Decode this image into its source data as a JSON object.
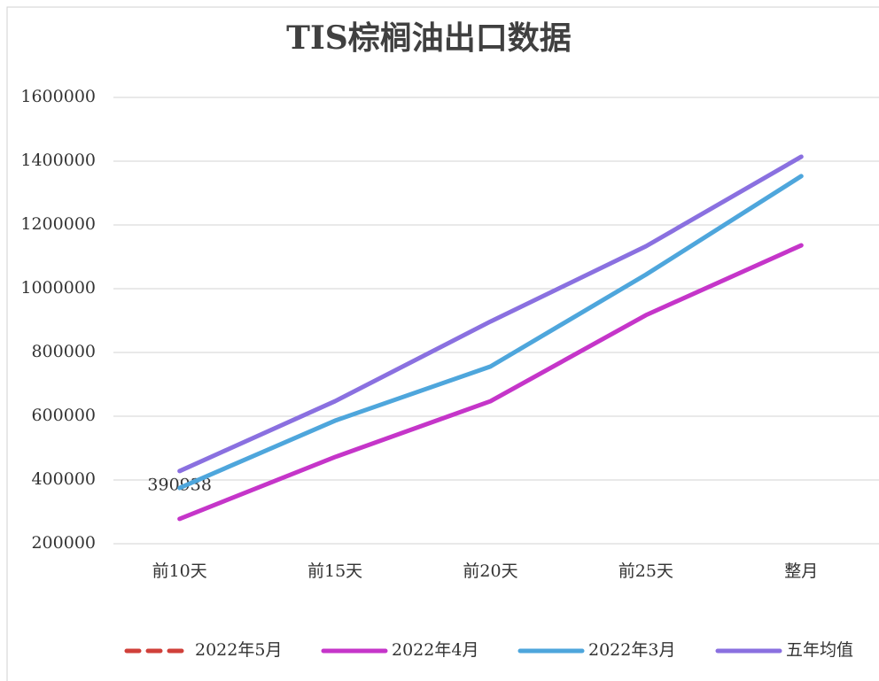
{
  "chart_data": {
    "type": "line",
    "title": "TIS棕榈油出口数据",
    "categories": [
      "前10天",
      "前15天",
      "前20天",
      "前25天",
      "整月"
    ],
    "series": [
      {
        "name": "2022年5月",
        "color": "#d0403a",
        "dashed": true,
        "values": [
          390938,
          null,
          null,
          null,
          null
        ],
        "show_labels": true
      },
      {
        "name": "2022年4月",
        "color": "#c535c9",
        "values": [
          278000,
          472000,
          647000,
          917000,
          1136000
        ]
      },
      {
        "name": "2022年3月",
        "color": "#4ea6dc",
        "values": [
          375000,
          586000,
          756000,
          1044000,
          1353000
        ]
      },
      {
        "name": "五年均值",
        "color": "#8a70e0",
        "values": [
          428000,
          647000,
          897000,
          1133000,
          1414000
        ]
      }
    ],
    "ylim": [
      200000,
      1600000
    ],
    "yticks": [
      200000,
      400000,
      600000,
      800000,
      1000000,
      1200000,
      1400000,
      1600000
    ],
    "grid": true,
    "legend": "bottom"
  }
}
